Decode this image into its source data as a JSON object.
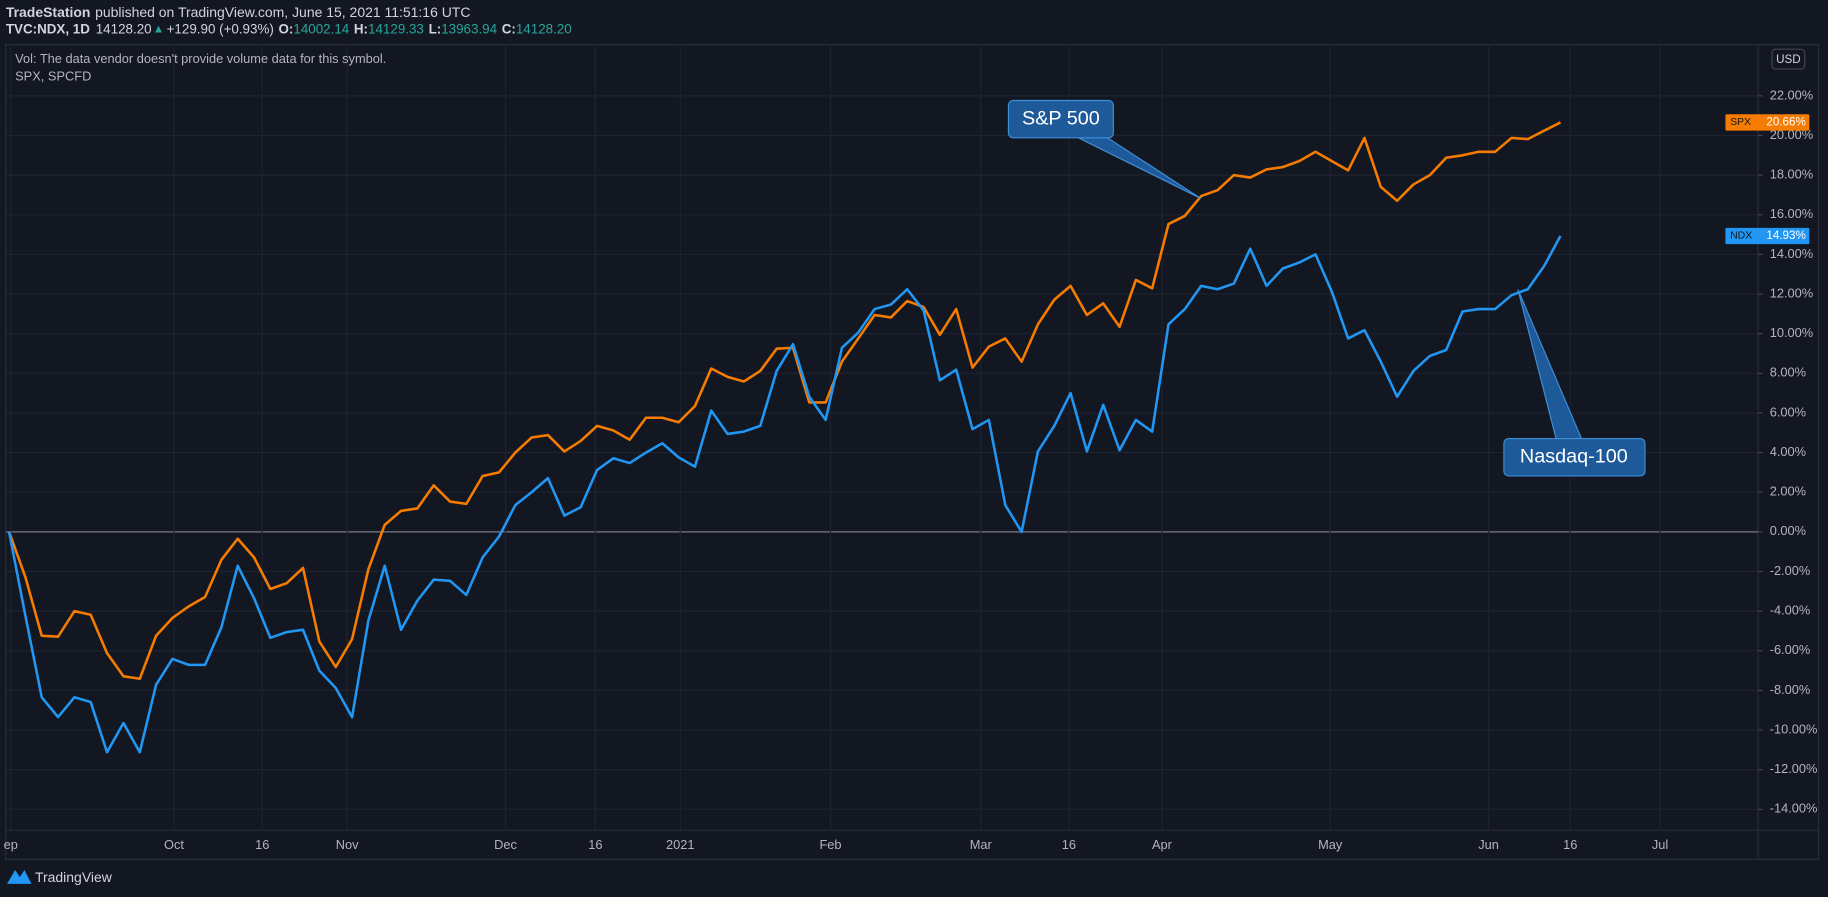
{
  "header": {
    "publisher": "TradeStation",
    "published": "published on TradingView.com, June 15, 2021 11:51:16 UTC",
    "symbol": "TVC:NDX, 1D",
    "price": "14128.20",
    "arrow": "▲",
    "change": "+129.90 (+0.93%)",
    "o_label": "O:",
    "o": "14002.14",
    "h_label": "H:",
    "h": "14129.33",
    "l_label": "L:",
    "l": "13963.94",
    "c_label": "C:",
    "c": "14128.20",
    "vol_note": "Vol: The data vendor doesn't provide volume data for this symbol.",
    "compare": "SPX, SPCFD",
    "currency": "USD"
  },
  "footer": {
    "brand": "TradingView"
  },
  "chart_data": {
    "type": "line",
    "xlim": [
      -0.2,
      107.1
    ],
    "xticks": [
      {
        "value": 0.1,
        "label": "ep"
      },
      {
        "value": 10.1,
        "label": "Oct"
      },
      {
        "value": 15.5,
        "label": "16"
      },
      {
        "value": 20.7,
        "label": "Nov"
      },
      {
        "value": 30.4,
        "label": "Dec"
      },
      {
        "value": 35.9,
        "label": "16"
      },
      {
        "value": 41.1,
        "label": "2021"
      },
      {
        "value": 50.3,
        "label": "Feb"
      },
      {
        "value": 59.5,
        "label": "Mar"
      },
      {
        "value": 64.9,
        "label": "16"
      },
      {
        "value": 70.6,
        "label": "Apr"
      },
      {
        "value": 80.9,
        "label": "May"
      },
      {
        "value": 90.6,
        "label": "Jun"
      },
      {
        "value": 95.6,
        "label": "16"
      },
      {
        "value": 101.1,
        "label": "Jul"
      }
    ],
    "ylim": [
      -15.06,
      24.59
    ],
    "yticks": [
      {
        "value": -14,
        "label": "-14.00%"
      },
      {
        "value": -12,
        "label": "-12.00%"
      },
      {
        "value": -10,
        "label": "-10.00%"
      },
      {
        "value": -8,
        "label": "-8.00%"
      },
      {
        "value": -6,
        "label": "-6.00%"
      },
      {
        "value": -4,
        "label": "-4.00%"
      },
      {
        "value": -2,
        "label": "-2.00%"
      },
      {
        "value": 0,
        "label": "0.00%"
      },
      {
        "value": 2,
        "label": "2.00%"
      },
      {
        "value": 4,
        "label": "4.00%"
      },
      {
        "value": 6,
        "label": "6.00%"
      },
      {
        "value": 8,
        "label": "8.00%"
      },
      {
        "value": 10,
        "label": "10.00%"
      },
      {
        "value": 12,
        "label": "12.00%"
      },
      {
        "value": 14,
        "label": "14.00%"
      },
      {
        "value": 16,
        "label": "16.00%"
      },
      {
        "value": 18,
        "label": "18.00%"
      },
      {
        "value": 20,
        "label": "20.00%"
      },
      {
        "value": 22,
        "label": "22.00%"
      }
    ],
    "grid": true,
    "series": [
      {
        "name": "SPX",
        "color": "#f57c00",
        "last_value_label": "20.66%",
        "values": [
          0,
          -2.29,
          -5.24,
          -5.29,
          -4.0,
          -4.18,
          -6.12,
          -7.29,
          -7.41,
          -5.24,
          -4.35,
          -3.76,
          -3.29,
          -1.41,
          -0.35,
          -1.29,
          -2.88,
          -2.59,
          -1.82,
          -5.53,
          -6.82,
          -5.41,
          -1.88,
          0.35,
          1.06,
          1.18,
          2.35,
          1.53,
          1.41,
          2.82,
          3.0,
          4.0,
          4.76,
          4.88,
          4.06,
          4.59,
          5.35,
          5.12,
          4.65,
          5.76,
          5.76,
          5.53,
          6.35,
          8.24,
          7.82,
          7.59,
          8.12,
          9.24,
          9.29,
          6.53,
          6.53,
          8.59,
          9.76,
          10.94,
          10.82,
          11.65,
          11.35,
          9.94,
          11.24,
          8.29,
          9.35,
          9.76,
          8.59,
          10.47,
          11.71,
          12.41,
          10.94,
          11.53,
          10.35,
          12.71,
          12.29,
          15.53,
          15.94,
          16.94,
          17.24,
          18.0,
          17.88,
          18.29,
          18.41,
          18.71,
          19.18,
          18.71,
          18.24,
          19.88,
          17.41,
          16.71,
          17.53,
          18.0,
          18.88,
          19.0,
          19.18,
          19.18,
          19.88,
          19.82,
          20.24,
          20.66
        ]
      },
      {
        "name": "NDX",
        "color": "#2196f3",
        "last_value_label": "14.93%",
        "values": [
          0,
          -4.24,
          -8.35,
          -9.35,
          -8.35,
          -8.59,
          -11.12,
          -9.65,
          -11.12,
          -7.71,
          -6.41,
          -6.71,
          -6.71,
          -4.82,
          -1.71,
          -3.35,
          -5.35,
          -5.06,
          -4.94,
          -7.0,
          -7.88,
          -9.35,
          -4.47,
          -1.71,
          -4.94,
          -3.47,
          -2.41,
          -2.47,
          -3.18,
          -1.29,
          -0.24,
          1.35,
          2.0,
          2.71,
          0.82,
          1.24,
          3.12,
          3.71,
          3.47,
          4.0,
          4.47,
          3.76,
          3.29,
          6.12,
          4.94,
          5.06,
          5.35,
          8.12,
          9.47,
          6.82,
          5.65,
          9.29,
          10.06,
          11.24,
          11.47,
          12.24,
          11.18,
          7.65,
          8.18,
          5.18,
          5.65,
          1.35,
          0,
          4.06,
          5.35,
          7.0,
          4.06,
          6.41,
          4.12,
          5.65,
          5.06,
          10.47,
          11.24,
          12.41,
          12.24,
          12.53,
          14.29,
          12.41,
          13.29,
          13.59,
          14.0,
          12.12,
          9.76,
          10.18,
          8.59,
          6.82,
          8.12,
          8.88,
          9.18,
          11.12,
          11.24,
          11.24,
          11.94,
          12.24,
          13.41,
          14.93
        ]
      }
    ],
    "annotations": [
      {
        "text": "S&P 500"
      },
      {
        "text": "Nasdaq-100"
      }
    ]
  }
}
